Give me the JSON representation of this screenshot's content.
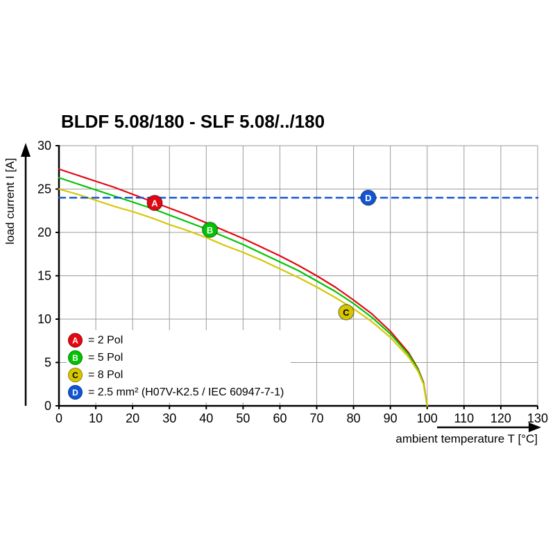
{
  "chart_data": {
    "type": "line",
    "title": "BLDF 5.08/180 - SLF 5.08/../180",
    "xlabel": "ambient temperature T [°C]",
    "ylabel": "load current I [A]",
    "xlim": [
      0,
      130
    ],
    "ylim": [
      0,
      30
    ],
    "xticks": [
      0,
      10,
      20,
      30,
      40,
      50,
      60,
      70,
      80,
      90,
      100,
      110,
      120,
      130
    ],
    "yticks": [
      0,
      5,
      10,
      15,
      20,
      25,
      30
    ],
    "grid": true,
    "legend_position": "bottom-left",
    "colors": {
      "grid": "#9a9a9a",
      "axis": "#000000",
      "background": "#ffffff"
    },
    "x": [
      0,
      5,
      10,
      15,
      20,
      25,
      30,
      35,
      40,
      45,
      50,
      55,
      60,
      65,
      70,
      75,
      80,
      85,
      90,
      95,
      97.5,
      99,
      100
    ],
    "series": [
      {
        "id": "A",
        "name": "2 Pol",
        "color": "#e30613",
        "letter_color": "#ffffff",
        "y": [
          27.3,
          26.6,
          25.9,
          25.2,
          24.4,
          23.6,
          22.8,
          22.0,
          21.1,
          20.2,
          19.3,
          18.3,
          17.3,
          16.2,
          15.0,
          13.7,
          12.2,
          10.6,
          8.6,
          6.1,
          4.3,
          2.7,
          0
        ],
        "marker": {
          "x": 26,
          "y": 23.4
        }
      },
      {
        "id": "B",
        "name": "5 Pol",
        "color": "#00c400",
        "letter_color": "#ffffff",
        "y": [
          26.3,
          25.6,
          24.9,
          24.2,
          23.5,
          22.8,
          22.0,
          21.2,
          20.4,
          19.5,
          18.6,
          17.6,
          16.6,
          15.6,
          14.4,
          13.2,
          11.8,
          10.2,
          8.3,
          5.9,
          4.2,
          2.6,
          0
        ],
        "marker": {
          "x": 41,
          "y": 20.3
        }
      },
      {
        "id": "C",
        "name": "8 Pol",
        "color": "#d6c600",
        "letter_color": "#000000",
        "y": [
          25.0,
          24.4,
          23.7,
          23.0,
          22.4,
          21.7,
          20.9,
          20.2,
          19.4,
          18.5,
          17.7,
          16.8,
          15.8,
          14.8,
          13.7,
          12.5,
          11.2,
          9.7,
          7.9,
          5.6,
          4.0,
          2.5,
          0
        ],
        "marker": {
          "x": 78,
          "y": 10.8
        }
      },
      {
        "id": "D",
        "name": "2.5 mm² (H07V-K2.5 / IEC 60947-7-1)",
        "color": "#1155d4",
        "letter_color": "#ffffff",
        "dashed": true,
        "x": [
          0,
          130
        ],
        "y": [
          24,
          24
        ],
        "marker": {
          "x": 84,
          "y": 24
        }
      }
    ],
    "legend": [
      {
        "id": "A",
        "label": "= 2 Pol",
        "color": "#e30613",
        "letter_color": "#ffffff"
      },
      {
        "id": "B",
        "label": "= 5 Pol",
        "color": "#00c400",
        "letter_color": "#ffffff"
      },
      {
        "id": "C",
        "label": "= 8 Pol",
        "color": "#d6c600",
        "letter_color": "#000000"
      },
      {
        "id": "D",
        "label": "= 2.5 mm² (H07V-K2.5 / IEC 60947-7-1)",
        "color": "#1155d4",
        "letter_color": "#ffffff"
      }
    ]
  }
}
